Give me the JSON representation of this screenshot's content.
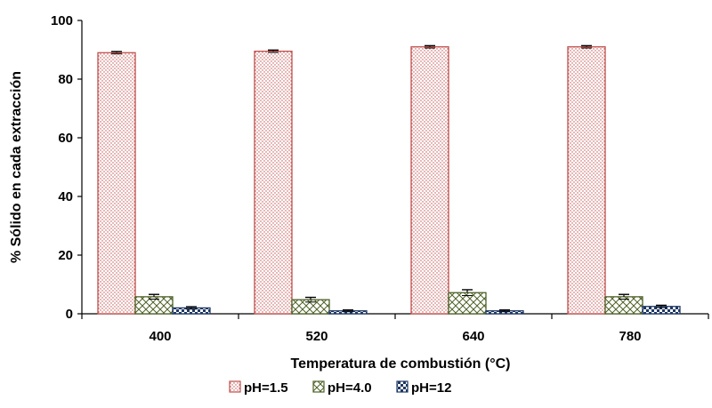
{
  "chart_data": {
    "type": "bar",
    "title": "",
    "xlabel": "Temperatura de combustión (°C)",
    "ylabel": "% Sólido en cada extracción",
    "categories": [
      "400",
      "520",
      "640",
      "780"
    ],
    "ylim": [
      0,
      100
    ],
    "yticks": [
      0,
      20,
      40,
      60,
      80,
      100
    ],
    "grid": false,
    "legend_position": "bottom",
    "series": [
      {
        "name": "pH=1.5",
        "values": [
          89.0,
          89.5,
          91.0,
          91.0
        ],
        "errors": [
          0.4,
          0.4,
          0.4,
          0.4
        ],
        "color": "#c0504d",
        "pattern": "dots"
      },
      {
        "name": "pH=4.0",
        "values": [
          5.8,
          4.8,
          7.2,
          5.8
        ],
        "errors": [
          0.8,
          0.8,
          1.0,
          0.8
        ],
        "color": "#4f6228",
        "pattern": "crosshatch"
      },
      {
        "name": "pH=12",
        "values": [
          2.0,
          1.0,
          1.0,
          2.5
        ],
        "errors": [
          0.4,
          0.3,
          0.3,
          0.4
        ],
        "color": "#1f3864",
        "pattern": "checker"
      }
    ]
  }
}
